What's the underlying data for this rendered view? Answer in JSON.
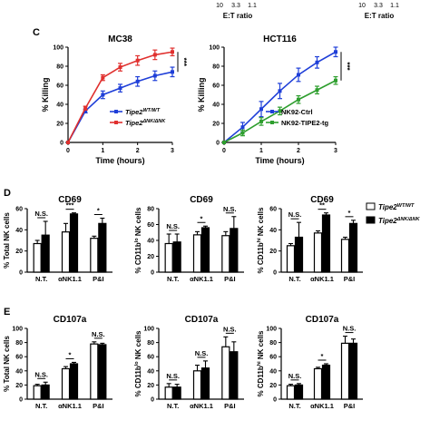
{
  "top_fragment": {
    "left_ticks": [
      "10",
      "3.3",
      "1.1"
    ],
    "left_label": "E:T ratio",
    "right_ticks": [
      "10",
      "3.3",
      "1.1"
    ],
    "right_label": "E:T ratio"
  },
  "panel_letters": {
    "c": "C",
    "d": "D",
    "e": "E"
  },
  "colors": {
    "wt": "#1f3fd8",
    "dnk": "#e0302e",
    "ctrl": "#1f3fd8",
    "tg": "#2e9e2e"
  },
  "chart_data": [
    {
      "id": "C1",
      "type": "line",
      "title": "MC38",
      "xlabel": "Time (hours)",
      "ylabel": "% Killing",
      "xlim": [
        0,
        3
      ],
      "ylim": [
        0,
        100
      ],
      "x_ticks": [
        "0",
        "1",
        "2",
        "3"
      ],
      "y_ticks": [
        "0",
        "20",
        "40",
        "60",
        "80",
        "100"
      ],
      "significance": "***",
      "series": [
        {
          "name": "Tipe2",
          "name_sup": "WT/WT",
          "color": "#1f3fd8",
          "x": [
            0,
            0.5,
            1,
            1.5,
            2,
            2.5,
            3
          ],
          "y": [
            0,
            33,
            50,
            57,
            64,
            70,
            74
          ],
          "err": [
            0,
            2,
            4,
            4,
            5,
            5,
            5
          ]
        },
        {
          "name": "Tipe2",
          "name_sup": "ΔNK/ΔNK",
          "color": "#e0302e",
          "x": [
            0,
            0.5,
            1,
            1.5,
            2,
            2.5,
            3
          ],
          "y": [
            0,
            36,
            68,
            79,
            86,
            92,
            95
          ],
          "err": [
            0,
            2,
            3,
            4,
            5,
            5,
            4
          ]
        }
      ]
    },
    {
      "id": "C2",
      "type": "line",
      "title": "HCT116",
      "xlabel": "Time (hours)",
      "ylabel": "% Killing",
      "xlim": [
        0,
        3
      ],
      "ylim": [
        0,
        100
      ],
      "x_ticks": [
        "0",
        "1",
        "2",
        "3"
      ],
      "y_ticks": [
        "0",
        "20",
        "40",
        "60",
        "80",
        "100"
      ],
      "significance": "***",
      "series": [
        {
          "name": "NK92-Ctrl",
          "color": "#1f3fd8",
          "x": [
            0,
            0.5,
            1,
            1.5,
            2,
            2.5,
            3
          ],
          "y": [
            0,
            16,
            35,
            54,
            71,
            84,
            95
          ],
          "err": [
            0,
            5,
            8,
            8,
            7,
            6,
            5
          ]
        },
        {
          "name": "NK92-TIPE2-tg",
          "color": "#2e9e2e",
          "x": [
            0,
            0.5,
            1,
            1.5,
            2,
            2.5,
            3
          ],
          "y": [
            0,
            10,
            22,
            33,
            45,
            55,
            65
          ],
          "err": [
            0,
            3,
            4,
            4,
            4,
            4,
            4
          ]
        }
      ]
    },
    {
      "id": "D1",
      "type": "bar",
      "title": "CD69",
      "ylabel": "% Total NK cells",
      "ylim": [
        0,
        60
      ],
      "y_ticks": [
        "0",
        "20",
        "40",
        "60"
      ],
      "categories": [
        "N.T.",
        "αNK1.1",
        "P&I"
      ],
      "series": [
        {
          "name": "Tipe2",
          "name_sup": "WT/WT",
          "values": [
            27,
            38,
            32
          ],
          "err": [
            3,
            8,
            2
          ]
        },
        {
          "name": "Tipe2",
          "name_sup": "ΔNK/ΔNK",
          "values": [
            35,
            55,
            46
          ],
          "err": [
            13,
            1,
            5
          ]
        }
      ],
      "significance": [
        "N.S.",
        "***",
        "*"
      ]
    },
    {
      "id": "D2",
      "type": "bar",
      "title": "CD69",
      "ylabel": "% CD11b",
      "ylabel_sup": "lo",
      "ylabel_tail": " NK cells",
      "ylim": [
        0,
        80
      ],
      "y_ticks": [
        "0",
        "20",
        "40",
        "60",
        "80"
      ],
      "categories": [
        "N.T.",
        "αNK1.1",
        "P&I"
      ],
      "series": [
        {
          "name": "Tipe2",
          "name_sup": "WT/WT",
          "values": [
            36,
            47,
            46
          ],
          "err": [
            12,
            4,
            5
          ]
        },
        {
          "name": "Tipe2",
          "name_sup": "ΔNK/ΔNK",
          "values": [
            38,
            56,
            55
          ],
          "err": [
            10,
            2,
            15
          ]
        }
      ],
      "significance": [
        "N.S.",
        "*",
        "N.S."
      ]
    },
    {
      "id": "D3",
      "type": "bar",
      "title": "CD69",
      "ylabel": "% CD11b",
      "ylabel_sup": "hi",
      "ylabel_tail": " NK cells",
      "ylim": [
        0,
        60
      ],
      "y_ticks": [
        "0",
        "20",
        "40",
        "60"
      ],
      "categories": [
        "N.T.",
        "αNK1.1",
        "P&I"
      ],
      "series": [
        {
          "name": "Tipe2",
          "name_sup": "WT/WT",
          "values": [
            25,
            37,
            31
          ],
          "err": [
            2,
            2,
            2
          ]
        },
        {
          "name": "Tipe2",
          "name_sup": "ΔNK/ΔNK",
          "values": [
            33,
            54,
            46
          ],
          "err": [
            14,
            2,
            3
          ]
        }
      ],
      "significance": [
        "N.S.",
        "**",
        "*"
      ]
    },
    {
      "id": "E1",
      "type": "bar",
      "title": "CD107a",
      "ylabel": "% Total NK cells",
      "ylim": [
        0,
        100
      ],
      "y_ticks": [
        "0",
        "20",
        "40",
        "60",
        "80",
        "100"
      ],
      "categories": [
        "N.T.",
        "αNK1.1",
        "P&I"
      ],
      "series": [
        {
          "name": "Tipe2",
          "name_sup": "WT/WT",
          "values": [
            19,
            43,
            78
          ],
          "err": [
            2,
            3,
            3
          ]
        },
        {
          "name": "Tipe2",
          "name_sup": "ΔNK/ΔNK",
          "values": [
            20,
            50,
            77
          ],
          "err": [
            4,
            2,
            2
          ]
        }
      ],
      "significance": [
        "N.S.",
        "*",
        "N.S."
      ]
    },
    {
      "id": "E2",
      "type": "bar",
      "title": "CD107a",
      "ylabel": "% CD11b",
      "ylabel_sup": "lo",
      "ylabel_tail": " NK cells",
      "ylim": [
        0,
        100
      ],
      "y_ticks": [
        "0",
        "20",
        "40",
        "60",
        "80",
        "100"
      ],
      "categories": [
        "N.T.",
        "αNK1.1",
        "P&I"
      ],
      "series": [
        {
          "name": "Tipe2",
          "name_sup": "WT/WT",
          "values": [
            17,
            40,
            74
          ],
          "err": [
            5,
            8,
            14
          ]
        },
        {
          "name": "Tipe2",
          "name_sup": "ΔNK/ΔNK",
          "values": [
            17,
            44,
            67
          ],
          "err": [
            4,
            10,
            14
          ]
        }
      ],
      "significance": [
        "N.S.",
        "N.S.",
        "N.S."
      ]
    },
    {
      "id": "E3",
      "type": "bar",
      "title": "CD107a",
      "ylabel": "% CD11b",
      "ylabel_sup": "hi",
      "ylabel_tail": " NK cells",
      "ylim": [
        0,
        100
      ],
      "y_ticks": [
        "0",
        "20",
        "40",
        "60",
        "80",
        "100"
      ],
      "categories": [
        "N.T.",
        "αNK1.1",
        "P&I"
      ],
      "series": [
        {
          "name": "Tipe2",
          "name_sup": "WT/WT",
          "values": [
            19,
            43,
            79
          ],
          "err": [
            2,
            2,
            10
          ]
        },
        {
          "name": "Tipe2",
          "name_sup": "ΔNK/ΔNK",
          "values": [
            20,
            48,
            79
          ],
          "err": [
            2,
            2,
            6
          ]
        }
      ],
      "significance": [
        "N.S.",
        "*",
        "N.S."
      ]
    }
  ]
}
